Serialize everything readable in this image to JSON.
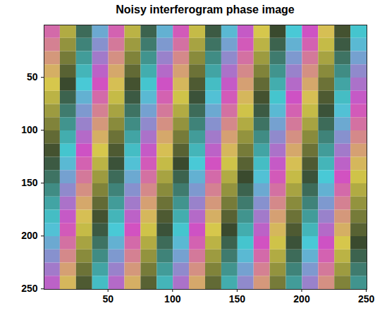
{
  "chart_data": {
    "type": "heatmap",
    "title": "Noisy interferogram phase image",
    "xlim": [
      0.5,
      250.5
    ],
    "ylim": [
      0.5,
      250.5
    ],
    "xticks": [
      50,
      100,
      150,
      200,
      250
    ],
    "yticks": [
      50,
      100,
      150,
      200,
      250
    ],
    "zlim": [
      -3.1416,
      3.1416
    ],
    "x_edges": [
      0.5,
      13,
      25.5,
      38,
      50.5,
      63,
      75.5,
      88,
      100.5,
      113,
      125.5,
      138,
      150.5,
      163,
      175.5,
      188,
      200.5,
      213,
      225.5,
      238,
      250.5
    ],
    "y_edges": [
      0.5,
      13,
      25.5,
      38,
      50.5,
      63,
      75.5,
      88,
      100.5,
      113,
      125.5,
      138,
      150.5,
      163,
      175.5,
      188,
      200.5,
      213,
      225.5,
      238,
      250.5
    ],
    "values": [
      [
        -2.8,
        -1.2,
        0.4,
        2.0,
        -2.9,
        -1.3,
        0.3,
        1.9,
        -3.0,
        -1.4,
        0.2,
        1.8,
        3.0,
        -1.6,
        0.0,
        1.6,
        3.1,
        -1.7,
        -0.1,
        1.5
      ],
      [
        -2.5,
        -0.9,
        0.7,
        2.3,
        -2.6,
        -1.0,
        0.6,
        2.2,
        -2.7,
        -1.1,
        0.5,
        2.1,
        -3.0,
        -1.3,
        0.3,
        1.9,
        -2.9,
        -1.4,
        0.2,
        1.8
      ],
      [
        -2.2,
        -0.6,
        1.0,
        2.6,
        -2.3,
        -0.7,
        0.9,
        2.5,
        -2.4,
        -0.8,
        0.8,
        2.4,
        -2.7,
        -1.0,
        0.6,
        2.2,
        -2.6,
        -1.1,
        0.5,
        2.1
      ],
      [
        -1.9,
        -0.3,
        1.3,
        2.9,
        -2.0,
        -0.4,
        1.2,
        2.8,
        -2.1,
        -0.5,
        1.1,
        2.7,
        -2.4,
        -0.7,
        0.9,
        2.5,
        -2.3,
        -0.8,
        0.8,
        2.4
      ],
      [
        -1.6,
        0.0,
        1.6,
        -3.1,
        -1.7,
        -0.1,
        1.5,
        3.1,
        -1.8,
        -0.2,
        1.4,
        3.0,
        -2.1,
        -0.4,
        1.2,
        2.8,
        -2.0,
        -0.5,
        1.1,
        2.7
      ],
      [
        -1.3,
        0.3,
        1.9,
        -2.8,
        -1.4,
        0.2,
        1.8,
        -2.9,
        -1.5,
        0.1,
        1.7,
        -3.0,
        -1.8,
        -0.1,
        1.5,
        3.1,
        -1.7,
        -0.2,
        1.4,
        3.0
      ],
      [
        -1.0,
        0.6,
        2.2,
        -2.5,
        -1.1,
        0.5,
        2.1,
        -2.6,
        -1.2,
        0.4,
        2.0,
        -2.7,
        -1.5,
        0.2,
        1.8,
        -2.9,
        -1.4,
        0.1,
        1.7,
        -3.0
      ],
      [
        -0.7,
        0.9,
        2.5,
        -2.2,
        -0.8,
        0.8,
        2.4,
        -2.3,
        -0.9,
        0.7,
        2.3,
        -2.4,
        -1.2,
        0.5,
        2.1,
        -2.6,
        -1.1,
        0.4,
        2.0,
        -2.7
      ],
      [
        -0.4,
        1.2,
        2.8,
        -1.9,
        -0.5,
        1.1,
        2.7,
        -2.0,
        -0.6,
        1.0,
        2.6,
        -2.1,
        -0.9,
        0.8,
        2.4,
        -2.3,
        -0.8,
        0.7,
        2.3,
        -2.4
      ],
      [
        -0.1,
        1.5,
        3.1,
        -1.6,
        -0.2,
        1.4,
        3.0,
        -1.7,
        -0.3,
        1.3,
        2.9,
        -1.8,
        -0.6,
        1.1,
        2.7,
        -2.0,
        -0.5,
        1.0,
        2.6,
        -2.1
      ],
      [
        0.2,
        1.8,
        -2.9,
        -1.3,
        0.1,
        1.7,
        -3.0,
        -1.4,
        0.0,
        1.6,
        -3.1,
        -1.5,
        -0.3,
        1.4,
        3.0,
        -1.7,
        -0.2,
        1.3,
        2.9,
        -1.8
      ],
      [
        0.5,
        2.1,
        -2.6,
        -1.0,
        0.4,
        2.0,
        -2.7,
        -1.1,
        0.3,
        1.9,
        -2.8,
        -1.2,
        0.0,
        1.7,
        -3.0,
        -1.4,
        0.1,
        1.6,
        -3.1,
        -1.5
      ],
      [
        0.8,
        2.4,
        -2.3,
        -0.7,
        0.7,
        2.3,
        -2.4,
        -0.8,
        0.6,
        2.2,
        -2.5,
        -0.9,
        0.3,
        2.0,
        -2.7,
        -1.1,
        0.4,
        1.9,
        -2.8,
        -1.2
      ],
      [
        1.1,
        2.7,
        -2.0,
        -0.4,
        1.0,
        2.6,
        -2.1,
        -0.5,
        0.9,
        2.5,
        -2.2,
        -0.6,
        0.6,
        2.3,
        -2.4,
        -0.8,
        0.7,
        2.2,
        -2.5,
        -0.9
      ],
      [
        1.4,
        3.0,
        -1.7,
        -0.1,
        1.3,
        2.9,
        -1.8,
        -0.2,
        1.2,
        2.8,
        -1.9,
        -0.3,
        0.9,
        2.6,
        -2.1,
        -0.5,
        1.0,
        2.5,
        -2.2,
        -0.6
      ],
      [
        1.7,
        -3.0,
        -1.4,
        0.2,
        1.6,
        -3.1,
        -1.5,
        0.1,
        1.5,
        3.1,
        -1.6,
        0.0,
        1.2,
        2.9,
        -1.8,
        -0.2,
        1.3,
        2.8,
        -1.9,
        -0.3
      ],
      [
        2.0,
        -2.7,
        -1.1,
        0.5,
        1.9,
        -2.8,
        -1.2,
        0.4,
        1.8,
        -2.9,
        -1.3,
        0.3,
        1.5,
        -3.1,
        -1.5,
        0.1,
        1.6,
        3.1,
        -1.6,
        0.0
      ],
      [
        2.3,
        -2.4,
        -0.8,
        0.8,
        2.2,
        -2.5,
        -0.9,
        0.7,
        2.1,
        -2.6,
        -1.0,
        0.6,
        1.8,
        -2.8,
        -1.2,
        0.4,
        1.9,
        -2.9,
        -1.3,
        0.3
      ],
      [
        2.6,
        -2.1,
        -0.5,
        1.1,
        2.5,
        -2.2,
        -0.6,
        1.0,
        2.4,
        -2.3,
        -0.7,
        0.9,
        2.1,
        -2.5,
        -0.9,
        0.7,
        2.2,
        -2.6,
        -1.0,
        0.6
      ],
      [
        2.9,
        -1.8,
        -0.2,
        1.4,
        2.8,
        -1.9,
        -0.3,
        1.3,
        2.7,
        -2.0,
        -0.4,
        1.2,
        2.4,
        -2.2,
        -0.6,
        1.0,
        2.5,
        -2.3,
        -0.7,
        0.9
      ]
    ]
  }
}
